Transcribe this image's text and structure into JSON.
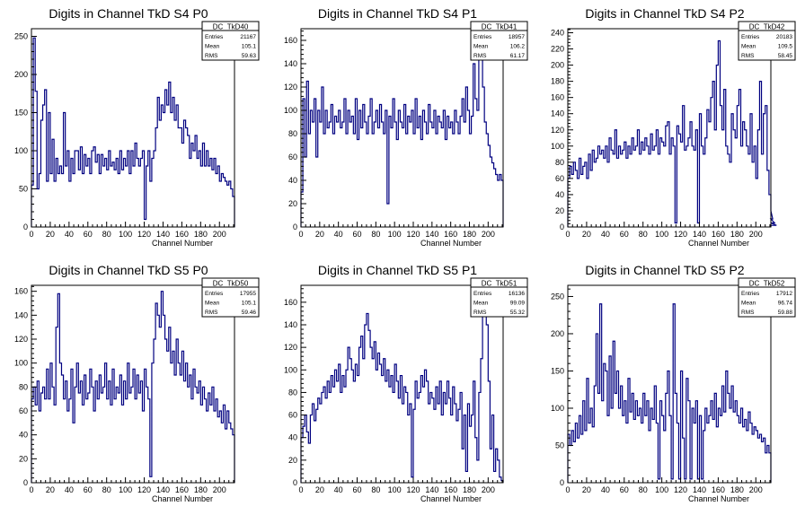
{
  "chart_data": [
    {
      "type": "step",
      "title": "Digits in Channel TkD S4 P0",
      "xlabel": "Channel Number",
      "ylabel": "",
      "xlim": [
        0,
        216
      ],
      "ylim": [
        0,
        260
      ],
      "xticks": [
        0,
        20,
        40,
        60,
        80,
        100,
        120,
        140,
        160,
        180,
        200
      ],
      "yticks": [
        0,
        50,
        100,
        150,
        200,
        250
      ],
      "stats": {
        "name": "DC_TkD40",
        "entries": "21167",
        "mean": "105.1",
        "rms": "59.63"
      },
      "line_color": "#000080",
      "bin_width": 2,
      "values": [
        55,
        248,
        178,
        50,
        70,
        140,
        160,
        180,
        60,
        150,
        70,
        115,
        60,
        90,
        70,
        80,
        70,
        150,
        80,
        100,
        60,
        90,
        70,
        100,
        100,
        75,
        105,
        70,
        95,
        80,
        90,
        70,
        100,
        105,
        85,
        95,
        70,
        95,
        80,
        90,
        75,
        100,
        80,
        85,
        75,
        90,
        70,
        100,
        75,
        90,
        80,
        100,
        70,
        100,
        80,
        110,
        90,
        80,
        90,
        100,
        10,
        80,
        100,
        60,
        90,
        100,
        130,
        170,
        140,
        160,
        150,
        180,
        160,
        190,
        150,
        170,
        140,
        160,
        130,
        130,
        110,
        140,
        130,
        120,
        90,
        110,
        100,
        120,
        90,
        100,
        80,
        110,
        80,
        100,
        80,
        90,
        75,
        90,
        70,
        80,
        60,
        70,
        65,
        60,
        55,
        60,
        50,
        40
      ]
    },
    {
      "type": "step",
      "title": "Digits in Channel TkD S4 P1",
      "xlabel": "Channel Number",
      "ylabel": "",
      "xlim": [
        0,
        216
      ],
      "ylim": [
        0,
        170
      ],
      "xticks": [
        0,
        20,
        40,
        60,
        80,
        100,
        120,
        140,
        160,
        180,
        200
      ],
      "yticks": [
        0,
        20,
        40,
        60,
        80,
        100,
        120,
        140,
        160
      ],
      "stats": {
        "name": "DC_TkD41",
        "entries": "18957",
        "mean": "106.2",
        "rms": "61.17"
      },
      "line_color": "#000080",
      "bin_width": 2,
      "values": [
        30,
        110,
        60,
        125,
        80,
        100,
        90,
        110,
        60,
        100,
        90,
        120,
        80,
        100,
        85,
        90,
        105,
        80,
        95,
        90,
        100,
        85,
        90,
        110,
        80,
        100,
        90,
        95,
        80,
        110,
        75,
        100,
        85,
        105,
        90,
        80,
        95,
        110,
        80,
        90,
        100,
        85,
        105,
        90,
        80,
        100,
        20,
        95,
        85,
        110,
        90,
        75,
        100,
        90,
        85,
        105,
        80,
        95,
        90,
        100,
        80,
        110,
        85,
        95,
        75,
        100,
        90,
        80,
        105,
        90,
        85,
        100,
        80,
        95,
        90,
        85,
        100,
        75,
        95,
        85,
        90,
        80,
        100,
        90,
        80,
        95,
        110,
        90,
        120,
        100,
        80,
        95,
        140,
        110,
        100,
        160,
        150,
        120,
        90,
        80,
        70,
        60,
        55,
        50,
        45,
        40,
        45,
        40
      ]
    },
    {
      "type": "step",
      "title": "Digits in Channel TkD S4 P2",
      "xlabel": "Channel Number",
      "ylabel": "",
      "xlim": [
        0,
        216
      ],
      "ylim": [
        0,
        245
      ],
      "xticks": [
        0,
        20,
        40,
        60,
        80,
        100,
        120,
        140,
        160,
        180,
        200
      ],
      "yticks": [
        0,
        20,
        40,
        60,
        80,
        100,
        120,
        140,
        160,
        180,
        200,
        220,
        240
      ],
      "stats": {
        "name": "DC_TkD42",
        "entries": "20183",
        "mean": "109.5",
        "rms": "58.45"
      },
      "line_color": "#000080",
      "bin_width": 2,
      "values": [
        60,
        75,
        65,
        80,
        70,
        60,
        85,
        65,
        75,
        80,
        60,
        90,
        70,
        95,
        80,
        85,
        100,
        90,
        95,
        85,
        100,
        80,
        110,
        95,
        90,
        120,
        85,
        100,
        90,
        95,
        105,
        85,
        100,
        90,
        110,
        95,
        100,
        120,
        90,
        105,
        95,
        110,
        100,
        90,
        115,
        95,
        100,
        120,
        90,
        110,
        105,
        100,
        125,
        130,
        90,
        110,
        100,
        5,
        125,
        115,
        105,
        150,
        95,
        100,
        110,
        130,
        100,
        95,
        120,
        5,
        140,
        100,
        90,
        110,
        145,
        130,
        160,
        180,
        120,
        200,
        230,
        150,
        120,
        170,
        100,
        90,
        80,
        140,
        120,
        110,
        150,
        170,
        100,
        130,
        120,
        100,
        90,
        140,
        80,
        100,
        60,
        120,
        180,
        90,
        140,
        150,
        70,
        40,
        20,
        10,
        5,
        2
      ]
    },
    {
      "type": "step",
      "title": "Digits in Channel TkD S5 P0",
      "xlabel": "Channel Number",
      "ylabel": "",
      "xlim": [
        0,
        216
      ],
      "ylim": [
        0,
        165
      ],
      "xticks": [
        0,
        20,
        40,
        60,
        80,
        100,
        120,
        140,
        160,
        180,
        200
      ],
      "yticks": [
        0,
        20,
        40,
        60,
        80,
        100,
        120,
        140,
        160
      ],
      "stats": {
        "name": "DC_TkD50",
        "entries": "17955",
        "mean": "105.1",
        "rms": "59.46"
      },
      "line_color": "#000080",
      "bin_width": 2,
      "values": [
        70,
        80,
        65,
        85,
        60,
        75,
        80,
        70,
        95,
        70,
        100,
        80,
        65,
        130,
        158,
        100,
        90,
        70,
        85,
        60,
        70,
        95,
        50,
        80,
        100,
        75,
        85,
        65,
        90,
        70,
        75,
        95,
        80,
        60,
        85,
        70,
        90,
        75,
        80,
        100,
        70,
        85,
        65,
        95,
        70,
        80,
        75,
        90,
        65,
        85,
        70,
        100,
        75,
        80,
        95,
        70,
        90,
        75,
        85,
        60,
        95,
        80,
        70,
        5,
        100,
        120,
        150,
        140,
        130,
        160,
        140,
        120,
        110,
        130,
        100,
        110,
        90,
        120,
        100,
        90,
        110,
        85,
        100,
        80,
        90,
        70,
        95,
        80,
        75,
        85,
        65,
        80,
        70,
        60,
        75,
        65,
        80,
        60,
        70,
        55,
        60,
        50,
        65,
        45,
        60,
        50,
        45,
        40
      ]
    },
    {
      "type": "step",
      "title": "Digits in Channel TkD S5 P1",
      "xlabel": "Channel Number",
      "ylabel": "",
      "xlim": [
        0,
        216
      ],
      "ylim": [
        0,
        175
      ],
      "xticks": [
        0,
        20,
        40,
        60,
        80,
        100,
        120,
        140,
        160,
        180,
        200
      ],
      "yticks": [
        0,
        20,
        40,
        60,
        80,
        100,
        120,
        140,
        160
      ],
      "stats": {
        "name": "DC_TkD51",
        "entries": "16136",
        "mean": "99.09",
        "rms": "55.32"
      },
      "line_color": "#000080",
      "bin_width": 2,
      "values": [
        40,
        50,
        60,
        45,
        35,
        60,
        70,
        55,
        65,
        75,
        70,
        80,
        85,
        75,
        90,
        80,
        95,
        85,
        100,
        90,
        105,
        80,
        95,
        85,
        100,
        120,
        110,
        100,
        90,
        105,
        95,
        120,
        130,
        110,
        140,
        150,
        135,
        120,
        110,
        125,
        100,
        115,
        105,
        95,
        110,
        90,
        100,
        85,
        95,
        80,
        105,
        90,
        75,
        95,
        70,
        85,
        80,
        60,
        70,
        5,
        65,
        90,
        75,
        80,
        95,
        85,
        100,
        90,
        70,
        80,
        75,
        65,
        85,
        70,
        90,
        60,
        80,
        70,
        90,
        75,
        60,
        85,
        70,
        55,
        65,
        80,
        30,
        60,
        10,
        70,
        50,
        60,
        90,
        40,
        20,
        80,
        110,
        150,
        170,
        140,
        90,
        30,
        60,
        10,
        30,
        20,
        5,
        2
      ]
    },
    {
      "type": "step",
      "title": "Digits in Channel TkD S5 P2",
      "xlabel": "Channel Number",
      "ylabel": "",
      "xlim": [
        0,
        216
      ],
      "ylim": [
        0,
        265
      ],
      "xticks": [
        0,
        20,
        40,
        60,
        80,
        100,
        120,
        140,
        160,
        180,
        200
      ],
      "yticks": [
        0,
        50,
        100,
        150,
        200,
        250
      ],
      "stats": {
        "name": "DC_TkD52",
        "entries": "17912",
        "mean": "96.74",
        "rms": "59.88"
      },
      "line_color": "#000080",
      "bin_width": 2,
      "values": [
        65,
        50,
        70,
        55,
        80,
        60,
        90,
        65,
        110,
        70,
        140,
        80,
        100,
        75,
        130,
        200,
        120,
        240,
        110,
        160,
        150,
        90,
        170,
        100,
        190,
        120,
        150,
        100,
        130,
        90,
        110,
        80,
        140,
        95,
        120,
        85,
        110,
        90,
        100,
        80,
        120,
        90,
        110,
        70,
        100,
        85,
        130,
        80,
        5,
        110,
        90,
        70,
        120,
        150,
        90,
        5,
        240,
        120,
        80,
        5,
        150,
        60,
        5,
        140,
        110,
        5,
        100,
        80,
        110,
        5,
        90,
        5,
        70,
        100,
        80,
        90,
        110,
        85,
        120,
        75,
        100,
        90,
        130,
        95,
        150,
        120,
        100,
        130,
        95,
        110,
        90,
        80,
        100,
        75,
        85,
        70,
        95,
        80,
        65,
        75,
        70,
        60,
        65,
        55,
        60,
        40,
        50,
        40
      ]
    }
  ]
}
